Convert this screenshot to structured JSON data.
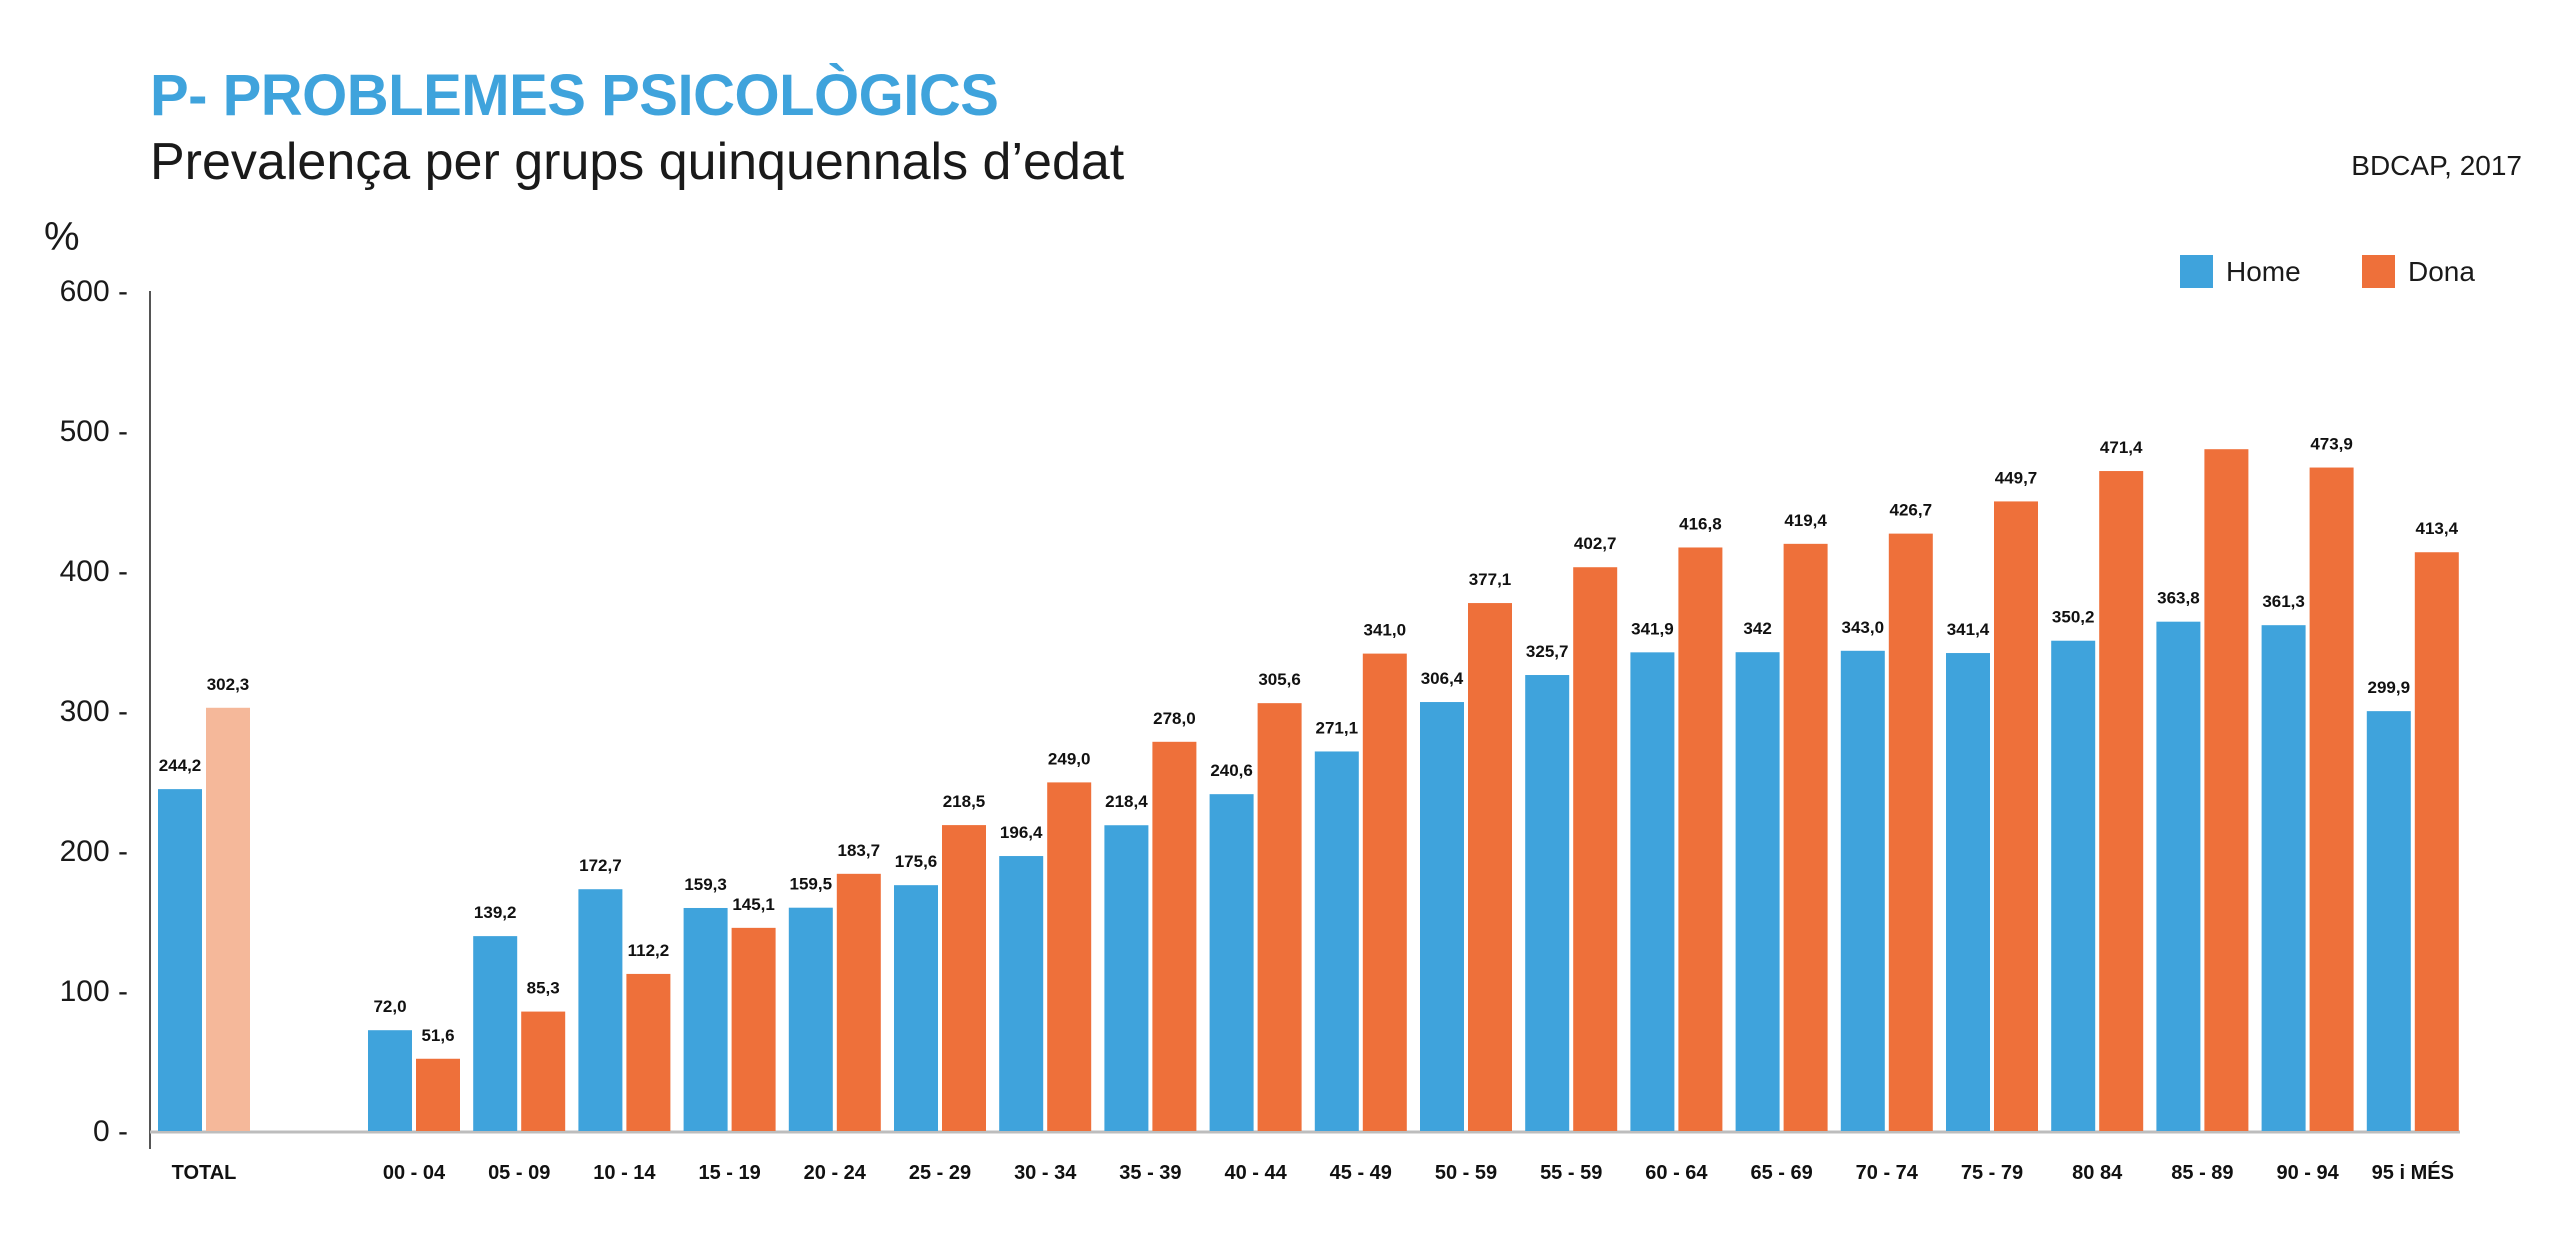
{
  "header": {
    "title": "P- PROBLEMES PSICOLÒGICS",
    "subtitle": "Prevalença per grups quinquennals d’edat",
    "source": "BDCAP, 2017"
  },
  "chart_data": {
    "type": "bar",
    "y_unit_label": "%",
    "ylim": [
      0,
      600
    ],
    "yticks": [
      0,
      100,
      200,
      300,
      400,
      500,
      600
    ],
    "ytick_labels": [
      "0 -",
      "100 -",
      "200 -",
      "300 -",
      "400 -",
      "500 -",
      "600 -"
    ],
    "grid": false,
    "legend_position": "top-right",
    "categories": [
      "TOTAL",
      "00 - 04",
      "05 - 09",
      "10 - 14",
      "15 - 19",
      "20 - 24",
      "25 - 29",
      "30 - 34",
      "35 - 39",
      "40 - 44",
      "45 - 49",
      "50 - 59",
      "55 - 59",
      "60 - 64",
      "65 - 69",
      "70 - 74",
      "75 - 79",
      "80 84",
      "85 - 89",
      "90 - 94",
      "95 i MÉS"
    ],
    "series": [
      {
        "name": "Home",
        "color": "#3fa3dc",
        "values": [
          244.2,
          72.0,
          139.2,
          172.7,
          159.3,
          159.5,
          175.6,
          196.4,
          218.4,
          240.6,
          271.1,
          306.4,
          325.7,
          341.9,
          342,
          343.0,
          341.4,
          350.2,
          363.8,
          361.3,
          299.9
        ],
        "value_labels": [
          "244,2",
          "72,0",
          "139,2",
          "172,7",
          "159,3",
          "159,5",
          "175,6",
          "196,4",
          "218,4",
          "240,6",
          "271,1",
          "306,4",
          "325,7",
          "341,9",
          "342",
          "343,0",
          "341,4",
          "350,2",
          "363,8",
          "361,3",
          "299,9"
        ]
      },
      {
        "name": "Dona",
        "color": "#ee703a",
        "total_color": "#f5b89a",
        "values": [
          302.3,
          51.6,
          85.3,
          112.2,
          145.1,
          183.7,
          218.5,
          249.0,
          278.0,
          305.6,
          341.0,
          377.1,
          402.7,
          416.8,
          419.4,
          426.7,
          449.7,
          471.4,
          487,
          473.9,
          413.4
        ],
        "value_labels": [
          "302,3",
          "51,6",
          "85,3",
          "112,2",
          "145,1",
          "183,7",
          "218,5",
          "249,0",
          "278,0",
          "305,6",
          "341,0",
          "377,1",
          "402,7",
          "416,8",
          "419,4",
          "426,7",
          "449,7",
          "471,4",
          "",
          "473,9",
          "413,4"
        ]
      }
    ]
  }
}
